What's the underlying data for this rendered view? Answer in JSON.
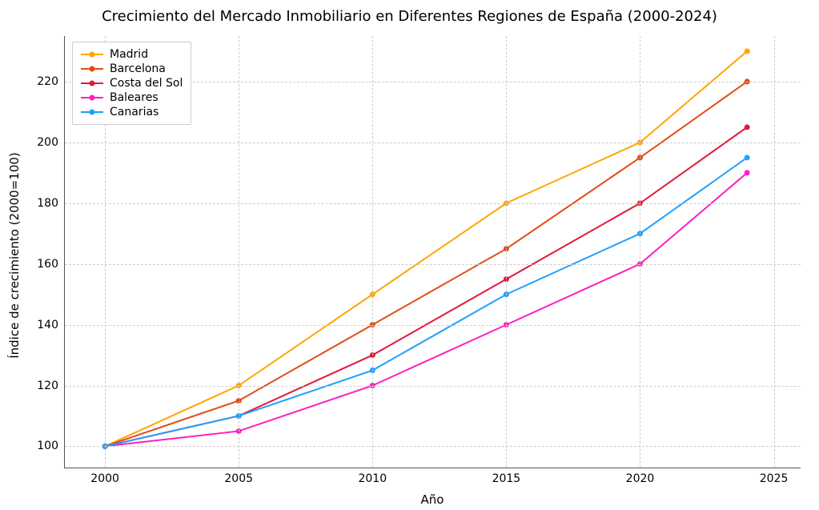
{
  "chart": {
    "type": "line",
    "title": "Crecimiento del Mercado Inmobiliario en Diferentes Regiones de España (2000-2024)",
    "title_fontsize": 18,
    "xlabel": "Año",
    "ylabel": "Índice de crecimiento (2000=100)",
    "label_fontsize": 15,
    "tick_fontsize": 14,
    "background_color": "#ffffff",
    "grid_color": "#cccccc",
    "grid_style": "dashed",
    "spine_color": "#555555",
    "xlim": [
      1998.5,
      2026
    ],
    "ylim": [
      93,
      235
    ],
    "xticks": [
      2000,
      2005,
      2010,
      2015,
      2020,
      2025
    ],
    "yticks": [
      100,
      120,
      140,
      160,
      180,
      200,
      220
    ],
    "x": [
      2000,
      2005,
      2010,
      2015,
      2020,
      2024
    ],
    "line_width": 2,
    "marker_style": "circle",
    "marker_size": 7,
    "series": [
      {
        "label": "Madrid",
        "color": "#ffa500",
        "y": [
          100,
          120,
          150,
          180,
          200,
          230
        ]
      },
      {
        "label": "Barcelona",
        "color": "#e24a14",
        "y": [
          100,
          115,
          140,
          165,
          195,
          220
        ]
      },
      {
        "label": "Costa del Sol",
        "color": "#e31a3c",
        "y": [
          100,
          110,
          130,
          155,
          180,
          205
        ]
      },
      {
        "label": "Baleares",
        "color": "#ff1fbf",
        "y": [
          100,
          105,
          120,
          140,
          160,
          190
        ]
      },
      {
        "label": "Canarias",
        "color": "#1fa0ff",
        "y": [
          100,
          110,
          125,
          150,
          170,
          195
        ]
      }
    ],
    "legend_position": "upper-left"
  }
}
